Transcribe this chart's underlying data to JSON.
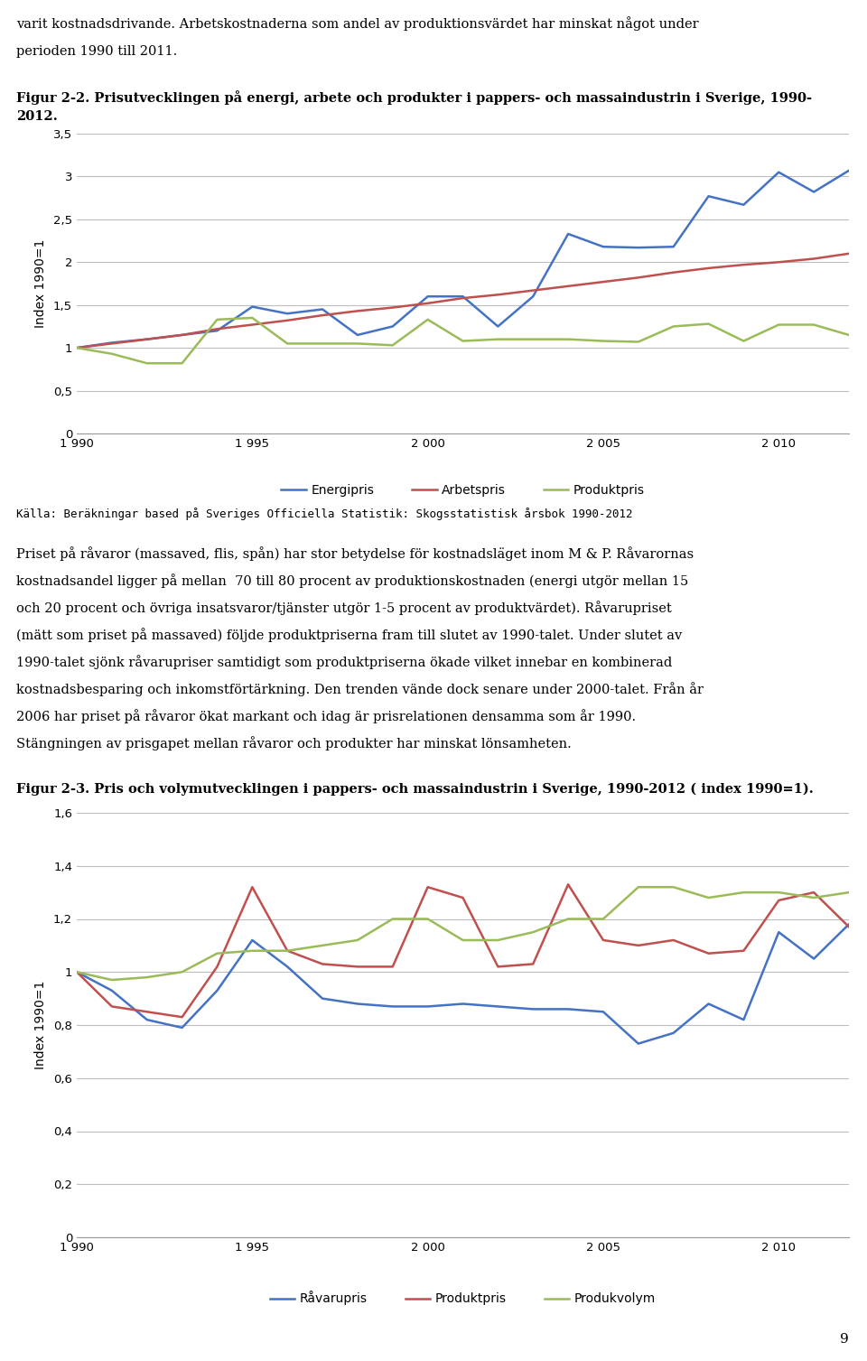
{
  "chart1": {
    "ylabel": "Index 1990=1",
    "xlim": [
      1990,
      2012
    ],
    "ylim": [
      0,
      3.5
    ],
    "yticks": [
      0,
      0.5,
      1,
      1.5,
      2,
      2.5,
      3,
      3.5
    ],
    "ytick_labels": [
      "0",
      "0,5",
      "1",
      "1,5",
      "2",
      "2,5",
      "3",
      "3,5"
    ],
    "xtick_positions": [
      1990,
      1995,
      2000,
      2005,
      2010
    ],
    "xtick_labels": [
      "1 990",
      "1 995",
      "2 000",
      "2 005",
      "2 010"
    ],
    "source": "Källa: Beräkningar based på Sveriges Officiella Statistik: Skogsstatistisk årsbok 1990-2012",
    "energipris": {
      "years": [
        1990,
        1991,
        1992,
        1993,
        1994,
        1995,
        1996,
        1997,
        1998,
        1999,
        2000,
        2001,
        2002,
        2003,
        2004,
        2005,
        2006,
        2007,
        2008,
        2009,
        2010,
        2011,
        2012
      ],
      "values": [
        1.0,
        1.06,
        1.1,
        1.15,
        1.2,
        1.48,
        1.4,
        1.45,
        1.15,
        1.25,
        1.6,
        1.6,
        1.25,
        1.6,
        2.33,
        2.18,
        2.17,
        2.18,
        2.77,
        2.67,
        3.05,
        2.82,
        3.07
      ],
      "color": "#4472C4",
      "label": "Energipris"
    },
    "arbetspris": {
      "years": [
        1990,
        1991,
        1992,
        1993,
        1994,
        1995,
        1996,
        1997,
        1998,
        1999,
        2000,
        2001,
        2002,
        2003,
        2004,
        2005,
        2006,
        2007,
        2008,
        2009,
        2010,
        2011,
        2012
      ],
      "values": [
        1.0,
        1.05,
        1.1,
        1.15,
        1.22,
        1.27,
        1.32,
        1.38,
        1.43,
        1.47,
        1.52,
        1.58,
        1.62,
        1.67,
        1.72,
        1.77,
        1.82,
        1.88,
        1.93,
        1.97,
        2.0,
        2.04,
        2.1
      ],
      "color": "#C0504D",
      "label": "Arbetspris"
    },
    "produktpris": {
      "years": [
        1990,
        1991,
        1992,
        1993,
        1994,
        1995,
        1996,
        1997,
        1998,
        1999,
        2000,
        2001,
        2002,
        2003,
        2004,
        2005,
        2006,
        2007,
        2008,
        2009,
        2010,
        2011,
        2012
      ],
      "values": [
        1.0,
        0.93,
        0.82,
        0.82,
        1.33,
        1.35,
        1.05,
        1.05,
        1.05,
        1.03,
        1.33,
        1.08,
        1.1,
        1.1,
        1.1,
        1.08,
        1.07,
        1.25,
        1.28,
        1.08,
        1.27,
        1.27,
        1.15
      ],
      "color": "#9BBB59",
      "label": "Produktpris"
    }
  },
  "chart2": {
    "ylabel": "Index 1990=1",
    "xlim": [
      1990,
      2012
    ],
    "ylim": [
      0,
      1.6
    ],
    "yticks": [
      0,
      0.2,
      0.4,
      0.6,
      0.8,
      1.0,
      1.2,
      1.4,
      1.6
    ],
    "ytick_labels": [
      "0",
      "0,2",
      "0,4",
      "0,6",
      "0,8",
      "1",
      "1,2",
      "1,4",
      "1,6"
    ],
    "xtick_positions": [
      1990,
      1995,
      2000,
      2005,
      2010
    ],
    "xtick_labels": [
      "1 990",
      "1 995",
      "2 000",
      "2 005",
      "2 010"
    ],
    "ravarupris": {
      "years": [
        1990,
        1991,
        1992,
        1993,
        1994,
        1995,
        1996,
        1997,
        1998,
        1999,
        2000,
        2001,
        2002,
        2003,
        2004,
        2005,
        2006,
        2007,
        2008,
        2009,
        2010,
        2011,
        2012
      ],
      "values": [
        1.0,
        0.93,
        0.82,
        0.79,
        0.93,
        1.12,
        1.02,
        0.9,
        0.88,
        0.87,
        0.87,
        0.88,
        0.87,
        0.86,
        0.86,
        0.85,
        0.73,
        0.77,
        0.88,
        0.82,
        1.15,
        1.05,
        1.18
      ],
      "color": "#4472C4",
      "label": "Råvarupris"
    },
    "produktpris": {
      "years": [
        1990,
        1991,
        1992,
        1993,
        1994,
        1995,
        1996,
        1997,
        1998,
        1999,
        2000,
        2001,
        2002,
        2003,
        2004,
        2005,
        2006,
        2007,
        2008,
        2009,
        2010,
        2011,
        2012
      ],
      "values": [
        1.0,
        0.87,
        0.85,
        0.83,
        1.02,
        1.32,
        1.08,
        1.03,
        1.02,
        1.02,
        1.32,
        1.28,
        1.02,
        1.03,
        1.33,
        1.12,
        1.1,
        1.12,
        1.07,
        1.08,
        1.27,
        1.3,
        1.17
      ],
      "color": "#C0504D",
      "label": "Produktpris"
    },
    "produkvolym": {
      "years": [
        1990,
        1991,
        1992,
        1993,
        1994,
        1995,
        1996,
        1997,
        1998,
        1999,
        2000,
        2001,
        2002,
        2003,
        2004,
        2005,
        2006,
        2007,
        2008,
        2009,
        2010,
        2011,
        2012
      ],
      "values": [
        1.0,
        0.97,
        0.98,
        1.0,
        1.07,
        1.08,
        1.08,
        1.1,
        1.12,
        1.2,
        1.2,
        1.12,
        1.12,
        1.15,
        1.2,
        1.2,
        1.32,
        1.32,
        1.28,
        1.3,
        1.3,
        1.28,
        1.3
      ],
      "color": "#9BBB59",
      "label": "Produkvolym"
    }
  },
  "text_para1_line1": "varit kostnadsdrivande. Arbetskostnaderna som andel av produktionsvärdet har minskat något under",
  "text_para1_line2": "perioden 1990 till 2011.",
  "fig1_title_line1": "Figur 2-2. Prisutvecklingen på energi, arbete och produkter i pappers- och massaindustrin i Sverige, 1990-",
  "fig1_title_line2": "2012.",
  "fig2_title": "Figur 2-3. Pris och volymutvecklingen i pappers- och massaindustrin i Sverige, 1990-2012 ( index 1990=1).",
  "source_text": "Källa: Beräkningar based på Sveriges Officiella Statistik: Skogsstatistisk årsbok 1990-2012",
  "para2_lines": [
    "Priset på råvaror (massaved, flis, spån) har stor betydelse för kostnadsläget inom M & P. Råvarornas",
    "kostnadsandel ligger på mellan  70 till 80 procent av produktionskostnaden (energi utgör mellan 15",
    "och 20 procent och övriga insatsvaror/tjänster utgör 1-5 procent av produktvärdet). Råvarupriset",
    "(mätt som priset på massaved) följde produktpriserna fram till slutet av 1990-talet. Under slutet av",
    "1990-talet sjönk råvarupriser samtidigt som produktpriserna ökade vilket innebar en kombinerad",
    "kostnadsbesparing och inkomstförtärkning. Den trenden vände dock senare under 2000-talet. Från år",
    "2006 har priset på råvaror ökat markant och idag är prisrelationen densamma som år 1990.",
    "Stängningen av prisgapet mellan råvaror och produkter har minskat lönsamheten."
  ],
  "page_num": "9",
  "background_color": "#FFFFFF",
  "grid_color": "#BEBEBE",
  "font_color": "#000000"
}
